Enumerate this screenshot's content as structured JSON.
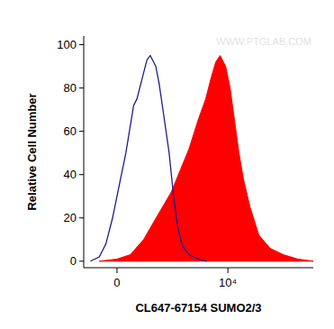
{
  "chart_data": {
    "type": "area",
    "x_label": "CL647-67154 SUMO2/3",
    "y_label": "Relative Cell Number",
    "annotation": "WWW.PTGLAB.COM",
    "xlim": [
      -3000,
      17700
    ],
    "xticks": [
      {
        "value": 0,
        "label": "0"
      },
      {
        "value": 10000,
        "label": "10⁴"
      }
    ],
    "ylim": [
      -3,
      104
    ],
    "yticks": [
      0,
      20,
      40,
      60,
      80,
      100
    ],
    "grid": false,
    "series": [
      {
        "type": "line",
        "color": "#1c1c8f",
        "x": [
          -2400,
          -1600,
          -1000,
          -400,
          200,
          800,
          1500,
          1800,
          2300,
          2700,
          3000,
          3300,
          3500,
          3800,
          4200,
          4700,
          5100,
          5500,
          5900,
          6500,
          7300,
          8100
        ],
        "values": [
          0,
          2,
          8,
          20,
          35,
          50,
          72,
          75,
          85,
          93,
          95,
          92,
          90,
          82,
          68,
          50,
          30,
          15,
          7,
          3,
          1,
          0
        ]
      },
      {
        "type": "area",
        "color": "#ff0000",
        "x": [
          -1600,
          0,
          1200,
          2400,
          3300,
          4100,
          4900,
          5700,
          6500,
          7300,
          8000,
          8500,
          8900,
          9300,
          9800,
          10200,
          10600,
          11000,
          11400,
          12000,
          12800,
          13800,
          15000,
          16300,
          17700
        ],
        "values": [
          0,
          1,
          3,
          10,
          18,
          25,
          32,
          42,
          52,
          65,
          75,
          85,
          92,
          95,
          90,
          80,
          65,
          50,
          38,
          25,
          12,
          6,
          3,
          1,
          0
        ]
      }
    ]
  }
}
